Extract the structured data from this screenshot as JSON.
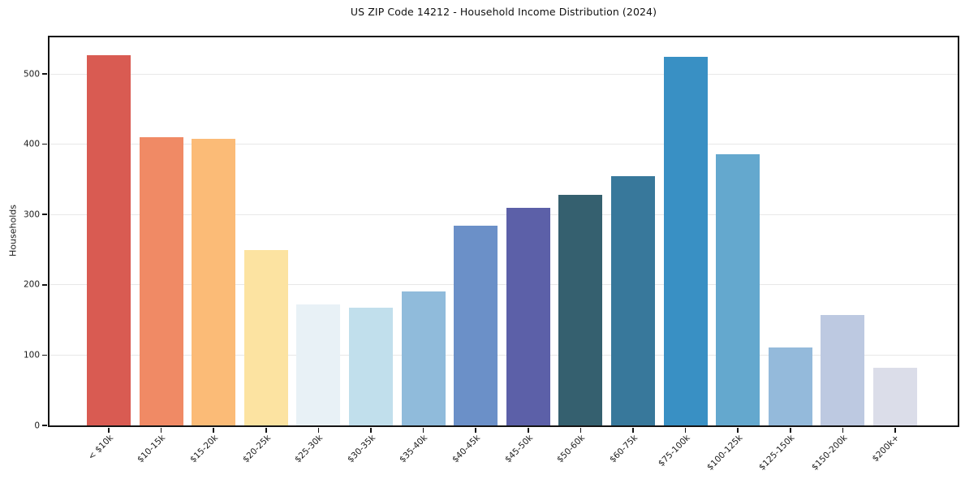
{
  "chart_data": {
    "type": "bar",
    "title": "US ZIP Code 14212 - Household Income Distribution (2024)",
    "xlabel": "",
    "ylabel": "Households",
    "ylim": [
      0,
      552
    ],
    "yticks": [
      0,
      100,
      200,
      300,
      400,
      500
    ],
    "grid": "horizontal-light",
    "legend": "none",
    "categories": [
      "< $10k",
      "$10-15k",
      "$15-20k",
      "$20-25k",
      "$25-30k",
      "$30-35k",
      "$35-40k",
      "$40-45k",
      "$45-50k",
      "$50-60k",
      "$60-75k",
      "$75-100k",
      "$100-125k",
      "$125-150k",
      "$150-200k",
      "$200k+"
    ],
    "values": [
      527,
      410,
      408,
      249,
      172,
      167,
      191,
      284,
      309,
      328,
      354,
      524,
      386,
      111,
      157,
      82
    ],
    "bar_colors": [
      "#d95b52",
      "#f08a65",
      "#fbbb77",
      "#fce3a1",
      "#e8f1f6",
      "#c1dfec",
      "#90bbdb",
      "#6b90c8",
      "#5c60a8",
      "#35606f",
      "#38789b",
      "#3990c4",
      "#64a8ce",
      "#94badb",
      "#bdc9e1",
      "#dbdde9"
    ],
    "axis_color": "#141414",
    "grid_color": "#e8e8e8"
  }
}
